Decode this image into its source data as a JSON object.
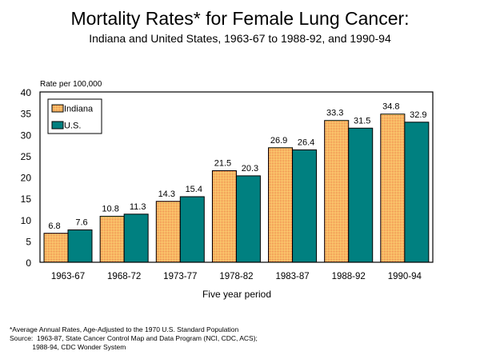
{
  "chart_data": {
    "type": "bar",
    "title": "Mortality Rates* for Female Lung Cancer:",
    "subtitle": "Indiana and United States, 1963-67 to 1988-92, and 1990-94",
    "xlabel": "Five year period",
    "ylabel": "Rate per 100,000",
    "ylim": [
      0,
      40
    ],
    "yticks": [
      0,
      5,
      10,
      15,
      20,
      25,
      30,
      35,
      40
    ],
    "categories": [
      "1963-67",
      "1968-72",
      "1973-77",
      "1978-82",
      "1983-87",
      "1988-92",
      "1990-94"
    ],
    "series": [
      {
        "name": "Indiana",
        "values": [
          6.8,
          10.8,
          14.3,
          21.5,
          26.9,
          33.3,
          34.8
        ],
        "color": "#f5c542",
        "pattern": "dotted-red-on-yellow"
      },
      {
        "name": "U.S.",
        "values": [
          7.6,
          11.3,
          15.4,
          20.3,
          26.4,
          31.5,
          32.9
        ],
        "color": "#008080"
      }
    ],
    "data_labels": true,
    "legend": "top-left",
    "grid": false
  },
  "footnotes": [
    "*Average Annual Rates, Age-Adjusted to the 1970 U.S. Standard Population",
    "Source:  1963-87, State Cancer Control Map and Data Program (NCI, CDC, ACS);",
    "            1988-94, CDC Wonder System"
  ]
}
